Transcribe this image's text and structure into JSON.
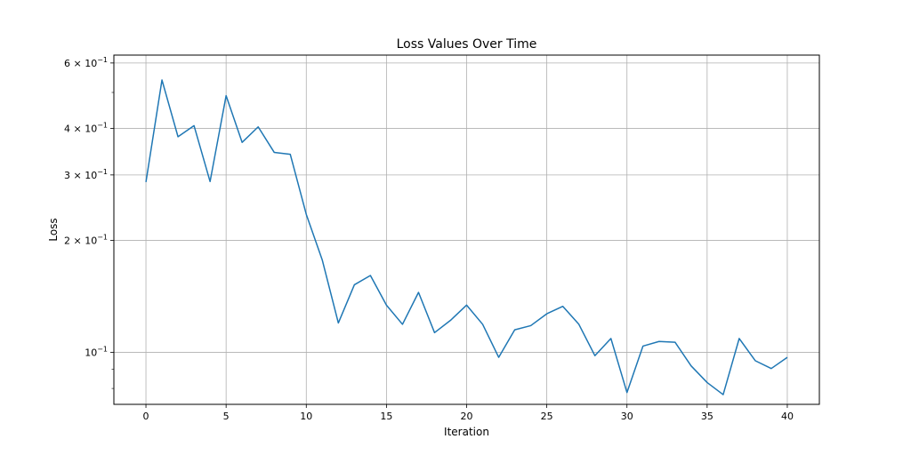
{
  "chart_data": {
    "type": "line",
    "title": "Loss Values Over Time",
    "xlabel": "Iteration",
    "ylabel": "Loss",
    "xlim": [
      -2,
      42
    ],
    "ylim": [
      0.0725,
      0.63
    ],
    "y_scale": "log",
    "grid": true,
    "x_ticks": [
      0,
      5,
      10,
      15,
      20,
      25,
      30,
      35,
      40
    ],
    "y_major_ticks": [
      {
        "value": 0.6,
        "mantissa": "6",
        "base": "10",
        "exponent": "−1"
      },
      {
        "value": 0.4,
        "mantissa": "4",
        "base": "10",
        "exponent": "−1"
      },
      {
        "value": 0.3,
        "mantissa": "3",
        "base": "10",
        "exponent": "−1"
      },
      {
        "value": 0.2,
        "mantissa": "2",
        "base": "10",
        "exponent": "−1"
      },
      {
        "value": 0.1,
        "mantissa": "",
        "base": "10",
        "exponent": "−1"
      }
    ],
    "y_minor_ticks": [
      0.5,
      0.08,
      0.09
    ],
    "series": [
      {
        "color": "#1f77b4",
        "x": [
          0,
          1,
          2,
          3,
          4,
          5,
          6,
          7,
          8,
          9,
          10,
          11,
          12,
          13,
          14,
          15,
          16,
          17,
          18,
          19,
          20,
          21,
          22,
          23,
          24,
          25,
          26,
          27,
          28,
          29,
          30,
          31,
          32,
          33,
          34,
          35,
          36,
          37,
          38,
          39,
          40
        ],
        "values": [
          0.287,
          0.54,
          0.38,
          0.407,
          0.288,
          0.49,
          0.367,
          0.404,
          0.345,
          0.341,
          0.235,
          0.177,
          0.12,
          0.152,
          0.161,
          0.134,
          0.119,
          0.145,
          0.113,
          0.122,
          0.134,
          0.119,
          0.097,
          0.115,
          0.118,
          0.127,
          0.133,
          0.119,
          0.098,
          0.109,
          0.078,
          0.104,
          0.107,
          0.1065,
          0.092,
          0.083,
          0.077,
          0.109,
          0.095,
          0.0905,
          0.097
        ]
      }
    ]
  }
}
